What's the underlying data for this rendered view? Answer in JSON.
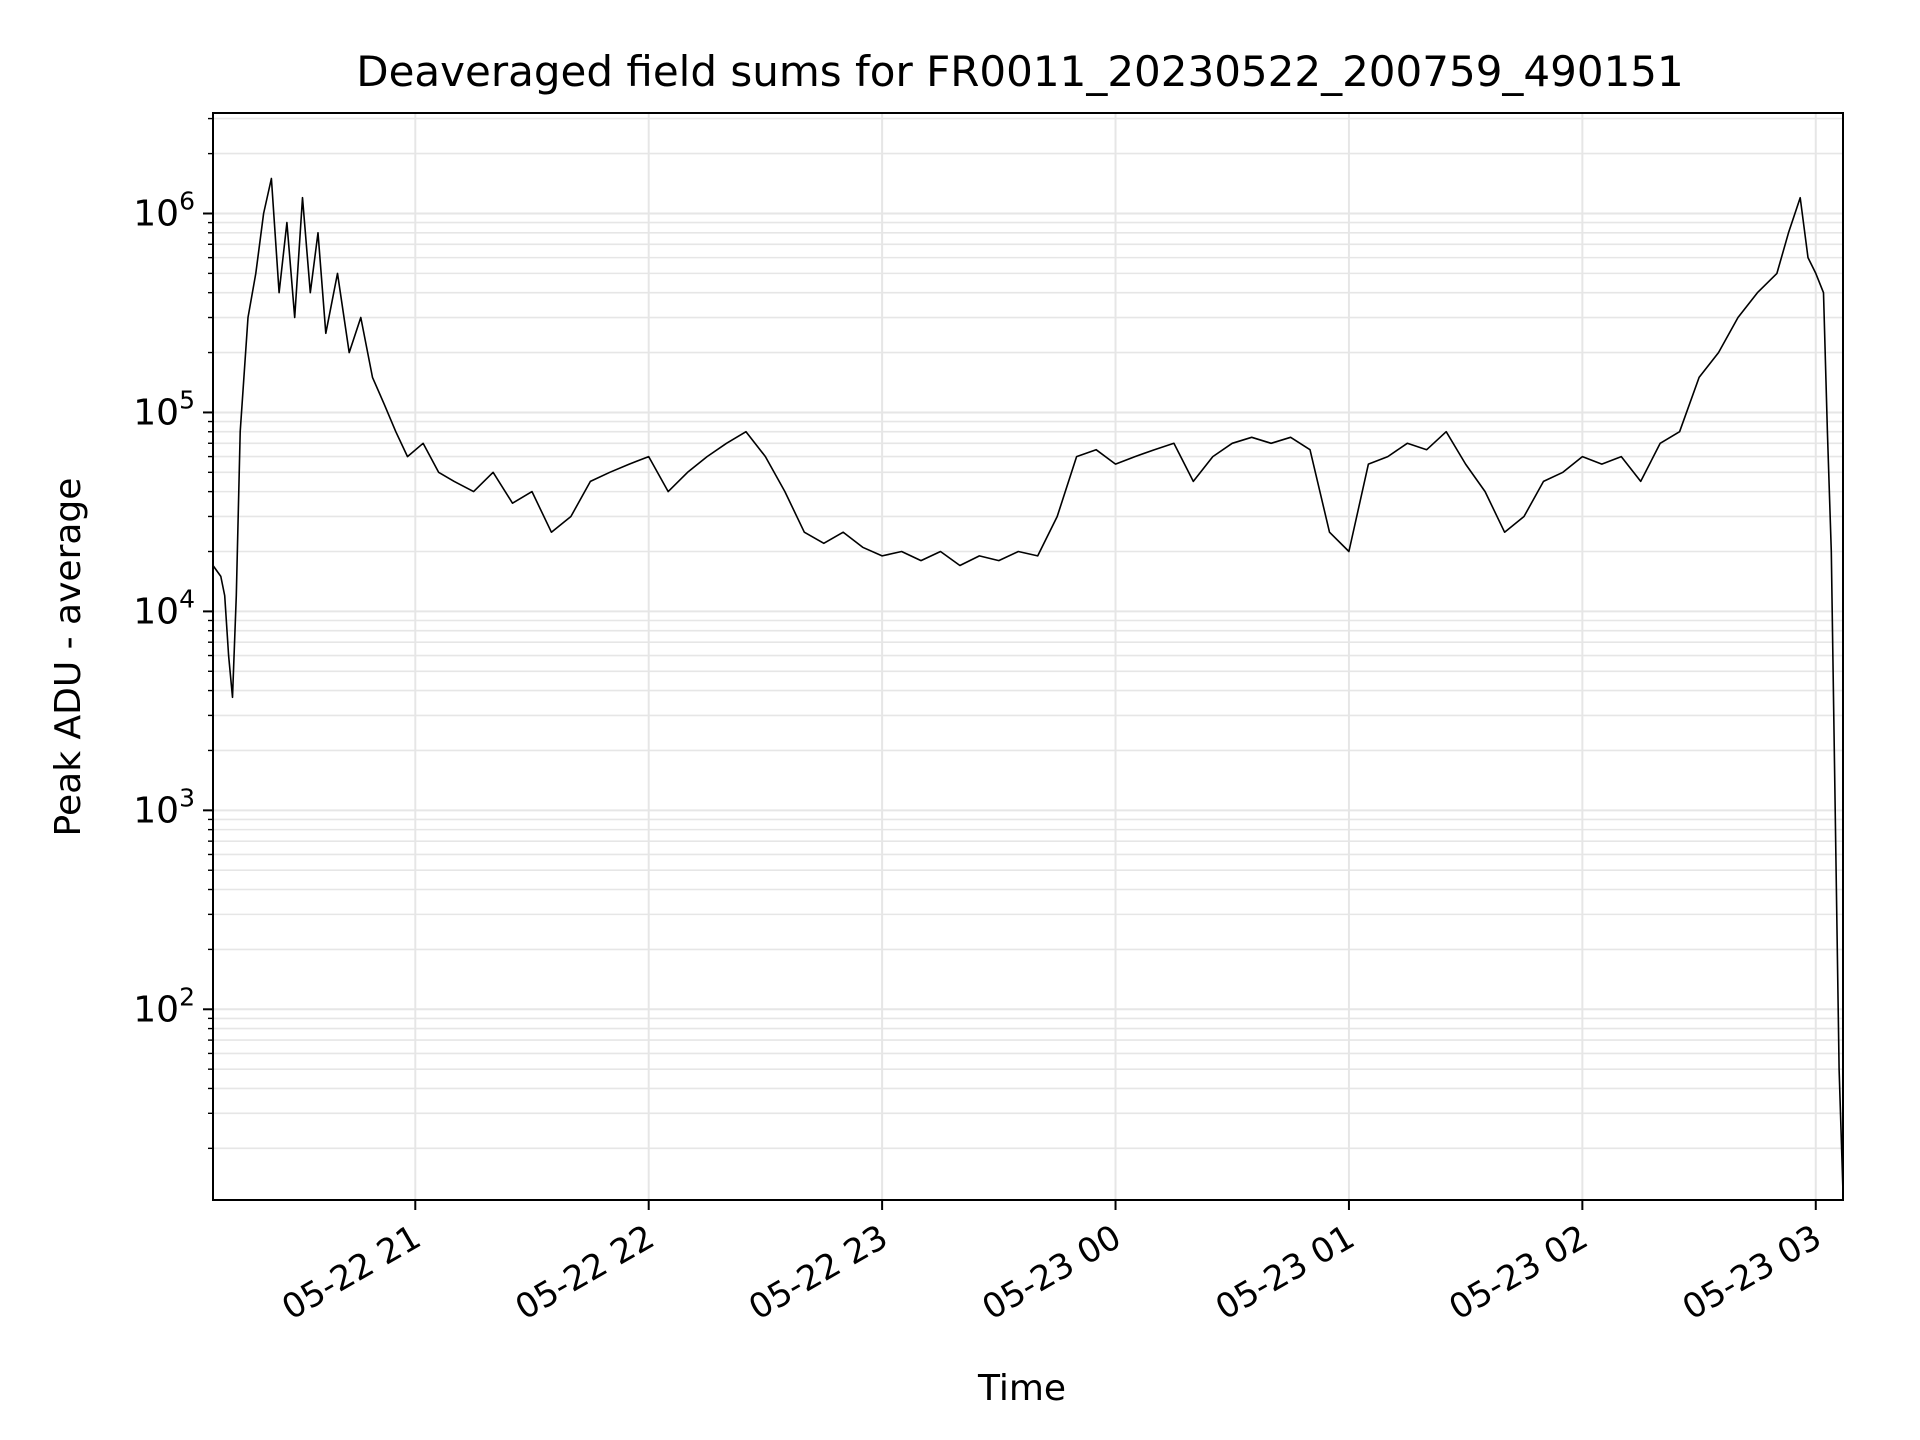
{
  "chart_data": {
    "type": "line",
    "title": "Deaveraged field sums for FR0011_20230522_200759_490151",
    "xlabel": "Time",
    "ylabel": "Peak ADU - average",
    "y_scale": "log",
    "ylim": [
      11,
      3200000
    ],
    "xlim": [
      "05-22 20:08",
      "05-23 03:07"
    ],
    "grid": true,
    "legend": "none",
    "line_color": "#000000",
    "grid_color": "#e6e6e6",
    "x_ticks": [
      {
        "t": "05-22 21:00",
        "label": "05-22 21"
      },
      {
        "t": "05-22 22:00",
        "label": "05-22 22"
      },
      {
        "t": "05-22 23:00",
        "label": "05-22 23"
      },
      {
        "t": "05-23 00:00",
        "label": "05-23 00"
      },
      {
        "t": "05-23 01:00",
        "label": "05-23 01"
      },
      {
        "t": "05-23 02:00",
        "label": "05-23 02"
      },
      {
        "t": "05-23 03:00",
        "label": "05-23 03"
      }
    ],
    "y_ticks": [
      {
        "value": 100,
        "base": "10",
        "exp": "2"
      },
      {
        "value": 1000,
        "base": "10",
        "exp": "3"
      },
      {
        "value": 10000,
        "base": "10",
        "exp": "4"
      },
      {
        "value": 100000,
        "base": "10",
        "exp": "5"
      },
      {
        "value": 1000000,
        "base": "10",
        "exp": "6"
      }
    ],
    "series": [
      {
        "x": [
          "05-22 20:08",
          "05-22 20:10",
          "05-22 20:11",
          "05-22 20:12",
          "05-22 20:13",
          "05-22 20:14",
          "05-22 20:15",
          "05-22 20:17",
          "05-22 20:19",
          "05-22 20:21",
          "05-22 20:23",
          "05-22 20:25",
          "05-22 20:27",
          "05-22 20:29",
          "05-22 20:31",
          "05-22 20:33",
          "05-22 20:35",
          "05-22 20:37",
          "05-22 20:40",
          "05-22 20:43",
          "05-22 20:46",
          "05-22 20:49",
          "05-22 20:52",
          "05-22 20:55",
          "05-22 20:58",
          "05-22 21:02",
          "05-22 21:06",
          "05-22 21:10",
          "05-22 21:15",
          "05-22 21:20",
          "05-22 21:25",
          "05-22 21:30",
          "05-22 21:35",
          "05-22 21:40",
          "05-22 21:45",
          "05-22 21:50",
          "05-22 21:55",
          "05-22 22:00",
          "05-22 22:05",
          "05-22 22:10",
          "05-22 22:15",
          "05-22 22:20",
          "05-22 22:25",
          "05-22 22:30",
          "05-22 22:35",
          "05-22 22:40",
          "05-22 22:45",
          "05-22 22:50",
          "05-22 22:55",
          "05-22 23:00",
          "05-22 23:05",
          "05-22 23:10",
          "05-22 23:15",
          "05-22 23:20",
          "05-22 23:25",
          "05-22 23:30",
          "05-22 23:35",
          "05-22 23:40",
          "05-22 23:45",
          "05-22 23:50",
          "05-22 23:55",
          "05-23 00:00",
          "05-23 00:05",
          "05-23 00:10",
          "05-23 00:15",
          "05-23 00:20",
          "05-23 00:25",
          "05-23 00:30",
          "05-23 00:35",
          "05-23 00:40",
          "05-23 00:45",
          "05-23 00:50",
          "05-23 00:55",
          "05-23 01:00",
          "05-23 01:05",
          "05-23 01:10",
          "05-23 01:15",
          "05-23 01:20",
          "05-23 01:25",
          "05-23 01:30",
          "05-23 01:35",
          "05-23 01:40",
          "05-23 01:45",
          "05-23 01:50",
          "05-23 01:55",
          "05-23 02:00",
          "05-23 02:05",
          "05-23 02:10",
          "05-23 02:15",
          "05-23 02:20",
          "05-23 02:25",
          "05-23 02:30",
          "05-23 02:35",
          "05-23 02:40",
          "05-23 02:45",
          "05-23 02:50",
          "05-23 02:53",
          "05-23 02:56",
          "05-23 02:58",
          "05-23 03:00",
          "05-23 03:02",
          "05-23 03:03",
          "05-23 03:04",
          "05-23 03:05",
          "05-23 03:06",
          "05-23 03:07"
        ],
        "y": [
          17000,
          15000,
          12000,
          6000,
          3700,
          12000,
          80000,
          300000,
          500000,
          1000000,
          1500000,
          400000,
          900000,
          300000,
          1200000,
          400000,
          800000,
          250000,
          500000,
          200000,
          300000,
          150000,
          110000,
          80000,
          60000,
          70000,
          50000,
          45000,
          40000,
          50000,
          35000,
          40000,
          25000,
          30000,
          45000,
          50000,
          55000,
          60000,
          40000,
          50000,
          60000,
          70000,
          80000,
          60000,
          40000,
          25000,
          22000,
          25000,
          21000,
          19000,
          20000,
          18000,
          20000,
          17000,
          19000,
          18000,
          20000,
          19000,
          30000,
          60000,
          65000,
          55000,
          60000,
          65000,
          70000,
          45000,
          60000,
          70000,
          75000,
          70000,
          75000,
          65000,
          25000,
          20000,
          55000,
          60000,
          70000,
          65000,
          80000,
          55000,
          40000,
          25000,
          30000,
          45000,
          50000,
          60000,
          55000,
          60000,
          45000,
          70000,
          80000,
          150000,
          200000,
          300000,
          400000,
          500000,
          800000,
          1200000,
          600000,
          500000,
          400000,
          80000,
          20000,
          1000,
          50,
          12
        ]
      }
    ]
  }
}
